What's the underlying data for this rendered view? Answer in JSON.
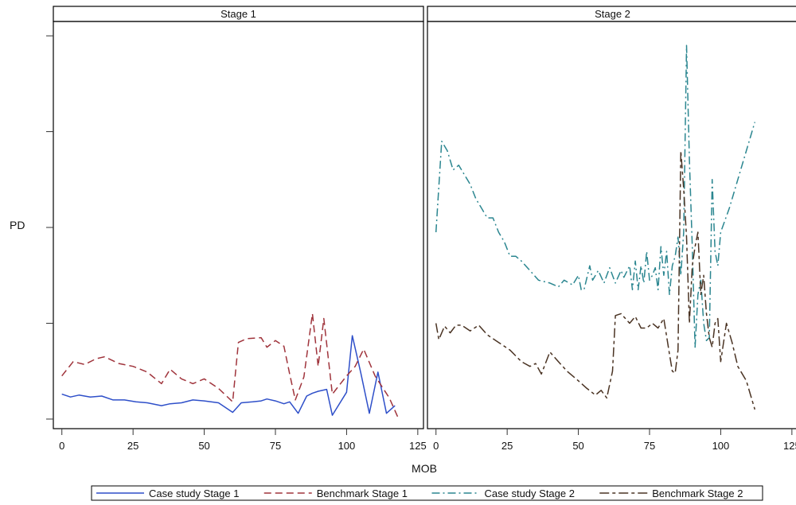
{
  "chart_data": {
    "type": "line",
    "ylabel": "PD",
    "xlabel": "MOB",
    "x_ticks": [
      0,
      25,
      50,
      75,
      100,
      125
    ],
    "xlim": [
      -3,
      127
    ],
    "y_ticks": [
      0,
      1,
      2,
      3,
      4
    ],
    "ylim": [
      -0.1,
      4.15
    ],
    "panels": [
      {
        "title": "Stage 1",
        "series": [
          {
            "name": "Case study Stage 1",
            "color": "#2e4fc9",
            "dash": "solid",
            "x": [
              0,
              3,
              6,
              10,
              14,
              18,
              22,
              26,
              30,
              35,
              38,
              42,
              46,
              50,
              55,
              60,
              63,
              67,
              70,
              72,
              75,
              78,
              80,
              83,
              86,
              88,
              90,
              93,
              95,
              100,
              102,
              105,
              108,
              111,
              114,
              117
            ],
            "y": [
              0.26,
              0.23,
              0.25,
              0.23,
              0.24,
              0.2,
              0.2,
              0.18,
              0.17,
              0.14,
              0.16,
              0.17,
              0.2,
              0.19,
              0.17,
              0.07,
              0.17,
              0.18,
              0.19,
              0.21,
              0.19,
              0.16,
              0.18,
              0.06,
              0.24,
              0.27,
              0.29,
              0.31,
              0.04,
              0.28,
              0.87,
              0.48,
              0.06,
              0.49,
              0.06,
              0.14
            ]
          },
          {
            "name": "Benchmark Stage 1",
            "color": "#a0343c",
            "dash": "long",
            "x": [
              0,
              4,
              8,
              12,
              15,
              20,
              25,
              30,
              35,
              38,
              42,
              46,
              50,
              55,
              60,
              62,
              65,
              70,
              72,
              75,
              78,
              80,
              82,
              85,
              88,
              90,
              92,
              95,
              100,
              103,
              106,
              110,
              115,
              118
            ],
            "y": [
              0.45,
              0.6,
              0.57,
              0.63,
              0.65,
              0.58,
              0.55,
              0.49,
              0.37,
              0.52,
              0.42,
              0.37,
              0.42,
              0.32,
              0.18,
              0.8,
              0.84,
              0.85,
              0.75,
              0.82,
              0.76,
              0.47,
              0.2,
              0.44,
              1.1,
              0.55,
              1.05,
              0.26,
              0.45,
              0.55,
              0.73,
              0.45,
              0.22,
              0.02
            ]
          }
        ]
      },
      {
        "title": "Stage 2",
        "series": [
          {
            "name": "Case study Stage 2",
            "color": "#2b8690",
            "dash": "dashdot",
            "x": [
              0,
              2,
              4,
              6,
              8,
              10,
              12,
              14,
              16,
              18,
              20,
              22,
              24,
              26,
              28,
              30,
              33,
              36,
              40,
              43,
              45,
              48,
              50,
              51,
              52,
              54,
              55,
              57,
              59,
              60,
              61,
              63,
              65,
              66,
              68,
              69,
              70,
              71,
              72,
              73,
              74,
              75,
              76,
              77,
              78,
              79,
              80,
              81,
              82,
              83,
              84,
              85,
              86,
              87,
              88,
              89,
              90,
              91,
              92,
              93,
              94,
              95,
              96,
              97,
              98,
              99,
              100,
              103,
              106,
              109,
              112
            ],
            "y": [
              1.95,
              2.9,
              2.8,
              2.6,
              2.65,
              2.55,
              2.45,
              2.3,
              2.2,
              2.1,
              2.1,
              1.95,
              1.85,
              1.7,
              1.7,
              1.65,
              1.55,
              1.45,
              1.42,
              1.38,
              1.45,
              1.4,
              1.5,
              1.35,
              1.35,
              1.6,
              1.45,
              1.55,
              1.42,
              1.5,
              1.58,
              1.42,
              1.55,
              1.48,
              1.6,
              1.35,
              1.65,
              1.35,
              1.6,
              1.42,
              1.75,
              1.45,
              1.5,
              1.58,
              1.35,
              1.8,
              1.5,
              1.75,
              1.3,
              1.6,
              1.7,
              1.9,
              1.5,
              1.95,
              3.9,
              2.7,
              1.8,
              0.75,
              1.3,
              1.45,
              1.0,
              0.82,
              0.85,
              2.5,
              1.75,
              1.6,
              1.95,
              2.2,
              2.5,
              2.8,
              3.1
            ]
          },
          {
            "name": "Benchmark Stage 2",
            "color": "#4a3323",
            "dash": "longshort",
            "x": [
              0,
              1,
              3,
              5,
              7,
              9,
              12,
              15,
              18,
              22,
              26,
              30,
              33,
              35,
              37,
              40,
              43,
              46,
              48,
              50,
              53,
              56,
              58,
              60,
              62,
              63,
              65,
              68,
              70,
              72,
              74,
              76,
              78,
              80,
              82,
              83,
              84,
              85,
              86,
              87,
              88,
              89,
              90,
              91,
              92,
              93,
              94,
              95,
              96,
              97,
              98,
              99,
              100,
              102,
              104,
              106,
              109,
              112
            ],
            "y": [
              1.0,
              0.83,
              0.97,
              0.9,
              0.98,
              0.98,
              0.92,
              0.98,
              0.88,
              0.8,
              0.72,
              0.6,
              0.55,
              0.58,
              0.47,
              0.7,
              0.6,
              0.5,
              0.45,
              0.4,
              0.32,
              0.25,
              0.3,
              0.22,
              0.5,
              1.08,
              1.1,
              1.0,
              1.07,
              0.95,
              0.95,
              1.0,
              0.95,
              1.05,
              0.68,
              0.5,
              0.48,
              0.72,
              2.8,
              2.4,
              1.9,
              1.0,
              1.6,
              1.8,
              1.95,
              1.3,
              1.5,
              1.1,
              0.85,
              0.75,
              1.0,
              1.05,
              0.6,
              1.0,
              0.8,
              0.55,
              0.4,
              0.1
            ]
          }
        ]
      }
    ],
    "legend": {
      "position": "bottom",
      "entries": [
        "Case study Stage 1",
        "Benchmark Stage 1",
        "Case study Stage 2",
        "Benchmark Stage 2"
      ]
    },
    "grid": false
  }
}
